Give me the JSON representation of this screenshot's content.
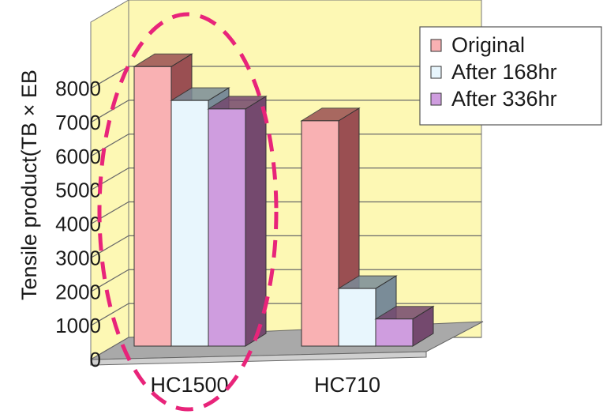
{
  "chart_data": {
    "type": "bar",
    "title": "",
    "ylabel": "Tensile product(TB × EB",
    "categories": [
      "HC1500",
      "HC710"
    ],
    "series": [
      {
        "name": "Original",
        "values": [
          8250,
          6650
        ]
      },
      {
        "name": "After 168hr",
        "values": [
          7250,
          1700
        ]
      },
      {
        "name": "After 336hr",
        "values": [
          7000,
          800
        ]
      }
    ],
    "ylim": [
      0,
      8000
    ],
    "yticks": [
      "0",
      "1000",
      "2000",
      "3000",
      "4000",
      "5000",
      "6000",
      "7000",
      "8000"
    ],
    "grid": true,
    "legend_position": "top-right",
    "colors": {
      "wall": "#fdf8b4",
      "floor": "#a9a9a9",
      "series": [
        "#f9b1b3",
        "#e8f6fd",
        "#cf9ddf"
      ],
      "series_side": [
        "#9a4f52",
        "#7a8c98",
        "#74496e"
      ],
      "annotation": "#e8247a"
    },
    "annotation": "dashed ellipse highlighting HC1500"
  }
}
